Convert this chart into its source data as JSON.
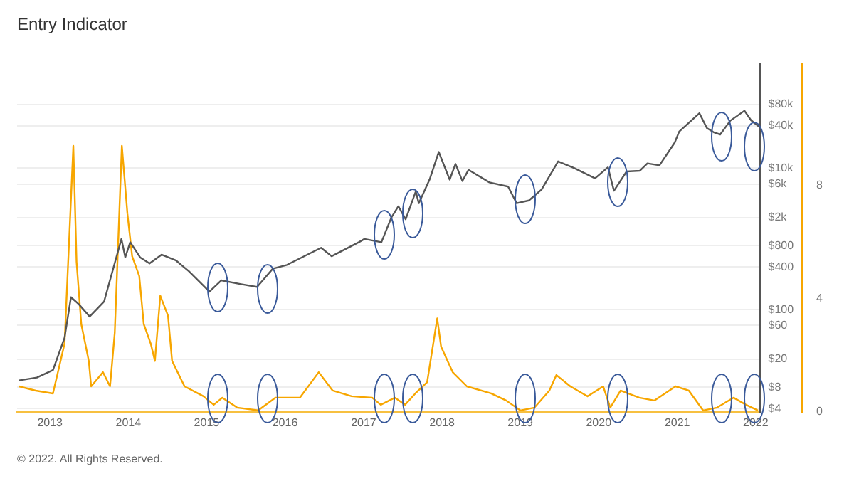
{
  "chart_data": {
    "type": "line",
    "title": "Entry Indicator",
    "annotations": [
      "© 2022. All Rights Reserved."
    ],
    "xlim": [
      "2012-08-01",
      "2022-01-20"
    ],
    "xticks": [
      "2013",
      "2014",
      "2015",
      "2016",
      "2017",
      "2018",
      "2019",
      "2020",
      "2021",
      "2022"
    ],
    "log": "y",
    "grid": "y",
    "ylim": [
      3.6,
      300000
    ],
    "yticks": [
      {
        "value": 4,
        "label": "$4"
      },
      {
        "value": 8,
        "label": "$8"
      },
      {
        "value": 20,
        "label": "$20"
      },
      {
        "value": 60,
        "label": "$60"
      },
      {
        "value": 100,
        "label": "$100"
      },
      {
        "value": 400,
        "label": "$400"
      },
      {
        "value": 800,
        "label": "$800"
      },
      {
        "value": 2000,
        "label": "$2k"
      },
      {
        "value": 6000,
        "label": "$6k"
      },
      {
        "value": 10000,
        "label": "$10k"
      },
      {
        "value": 40000,
        "label": "$40k"
      },
      {
        "value": 80000,
        "label": "$80k"
      }
    ],
    "y2lim": [
      0,
      12.3
    ],
    "y2ticks": [
      0,
      4,
      8
    ],
    "marker": "none",
    "line_style": "solid",
    "legend": false,
    "series": [
      {
        "color": "#555555",
        "axis": "y",
        "x": [
          "2012-08-10",
          "2012-11-01",
          "2013-01-15",
          "2013-03-10",
          "2013-04-09",
          "2013-05-15",
          "2013-07-05",
          "2013-09-10",
          "2013-11-30",
          "2013-12-18",
          "2014-01-10",
          "2014-02-25",
          "2014-04-10",
          "2014-06-05",
          "2014-08-10",
          "2014-10-10",
          "2015-01-14",
          "2015-03-10",
          "2015-06-10",
          "2015-08-24",
          "2015-11-05",
          "2016-01-10",
          "2016-06-17",
          "2016-08-05",
          "2016-12-10",
          "2017-01-05",
          "2017-03-25",
          "2017-05-10",
          "2017-06-12",
          "2017-07-16",
          "2017-09-01",
          "2017-09-15",
          "2017-11-05",
          "2017-12-17",
          "2018-02-06",
          "2018-03-05",
          "2018-04-06",
          "2018-05-05",
          "2018-08-10",
          "2018-11-05",
          "2018-12-15",
          "2019-02-10",
          "2019-04-10",
          "2019-06-26",
          "2019-09-10",
          "2019-12-15",
          "2020-02-13",
          "2020-03-12",
          "2020-05-10",
          "2020-07-10",
          "2020-08-15",
          "2020-10-10",
          "2020-12-20",
          "2021-01-10",
          "2021-04-14",
          "2021-05-19",
          "2021-06-22",
          "2021-07-20",
          "2021-09-05",
          "2021-11-10",
          "2021-12-10",
          "2022-01-20"
        ],
        "values": [
          10,
          11,
          14,
          40,
          150,
          120,
          80,
          130,
          1000,
          550,
          900,
          550,
          450,
          600,
          500,
          350,
          180,
          260,
          230,
          210,
          380,
          430,
          750,
          570,
          900,
          1000,
          900,
          2000,
          2900,
          1900,
          4700,
          3200,
          7000,
          17000,
          6900,
          11500,
          6600,
          9500,
          6300,
          5500,
          3200,
          3500,
          5000,
          12500,
          10000,
          7200,
          10300,
          4800,
          9000,
          9200,
          11700,
          11000,
          23000,
          33000,
          60000,
          37000,
          32000,
          30000,
          47000,
          65000,
          48000,
          38000
        ]
      },
      {
        "color": "#f7a600",
        "axis": "y2",
        "x": [
          "2012-08-10",
          "2012-10-27",
          "2013-01-15",
          "2013-03-10",
          "2013-04-20",
          "2013-05-05",
          "2013-05-27",
          "2013-07-01",
          "2013-07-12",
          "2013-09-05",
          "2013-10-08",
          "2013-10-30",
          "2013-12-02",
          "2013-12-28",
          "2014-01-19",
          "2014-02-21",
          "2014-03-14",
          "2014-04-16",
          "2014-05-05",
          "2014-05-30",
          "2014-07-05",
          "2014-07-24",
          "2014-09-20",
          "2014-12-17",
          "2015-02-03",
          "2015-03-15",
          "2015-05-23",
          "2015-08-29",
          "2015-11-17",
          "2016-03-10",
          "2016-06-06",
          "2016-08-10",
          "2016-11-06",
          "2017-02-10",
          "2017-03-22",
          "2017-05-27",
          "2017-07-13",
          "2017-08-30",
          "2017-10-24",
          "2017-12-10",
          "2017-12-28",
          "2018-02-20",
          "2018-04-27",
          "2018-08-18",
          "2018-10-27",
          "2019-01-01",
          "2019-03-08",
          "2019-05-16",
          "2019-06-18",
          "2019-08-22",
          "2019-11-10",
          "2020-01-22",
          "2020-02-24",
          "2020-04-12",
          "2020-07-08",
          "2020-09-16",
          "2020-12-24",
          "2021-02-24",
          "2021-05-01",
          "2021-07-05",
          "2021-09-20",
          "2021-11-17",
          "2022-01-12"
        ],
        "values": [
          0.9,
          0.75,
          0.65,
          2.4,
          9.4,
          5.3,
          3.1,
          1.8,
          0.9,
          1.4,
          0.9,
          2.8,
          9.4,
          7,
          5.5,
          4.8,
          3.1,
          2.4,
          1.8,
          4.1,
          3.4,
          1.8,
          0.9,
          0.55,
          0.25,
          0.5,
          0.15,
          0.05,
          0.5,
          0.5,
          1.4,
          0.75,
          0.55,
          0.5,
          0.25,
          0.5,
          0.25,
          0.65,
          1.05,
          3.3,
          2.3,
          1.4,
          0.9,
          0.65,
          0.4,
          0.05,
          0.15,
          0.75,
          1.3,
          0.9,
          0.55,
          0.9,
          0.15,
          0.75,
          0.5,
          0.4,
          0.9,
          0.75,
          0.05,
          0.15,
          0.5,
          0.25,
          0.05
        ]
      }
    ]
  }
}
